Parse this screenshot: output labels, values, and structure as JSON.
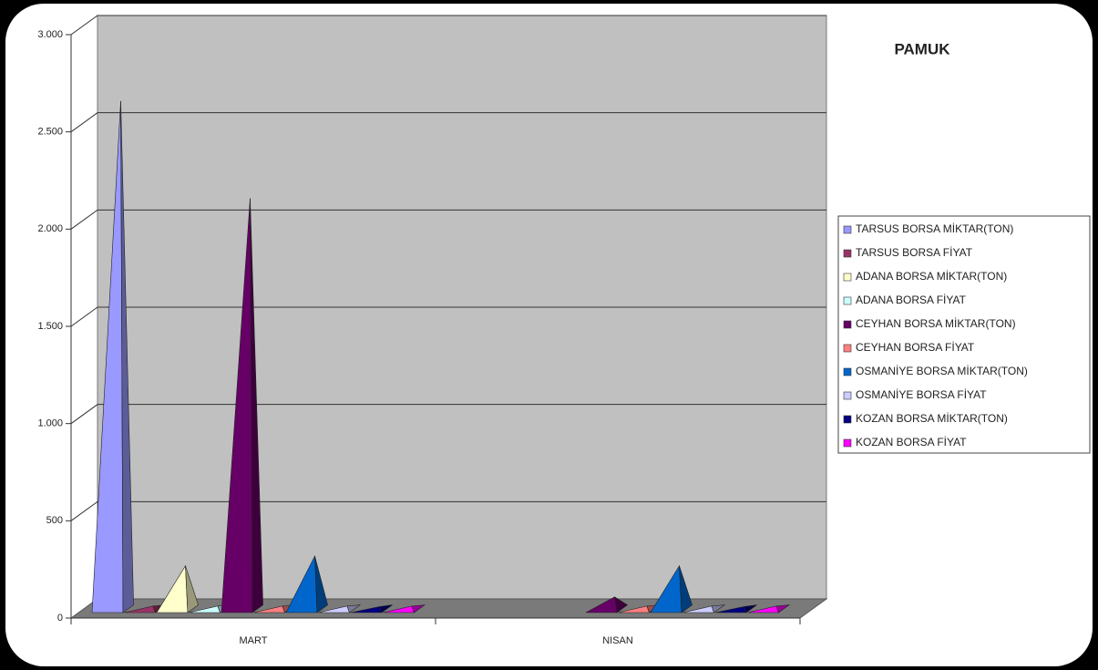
{
  "chart_data": {
    "type": "pyramid3d",
    "title": "PAMUK",
    "categories": [
      "MART",
      "NISAN"
    ],
    "series": [
      {
        "name": "TARSUS BORSA MİKTAR(TON)",
        "color": "#9999ff",
        "values": [
          2600,
          null
        ]
      },
      {
        "name": "TARSUS BORSA FİYAT",
        "color": "#993366",
        "values": [
          3,
          null
        ]
      },
      {
        "name": "ADANA BORSA MİKTAR(TON)",
        "color": "#ffffcc",
        "values": [
          210,
          null
        ]
      },
      {
        "name": "ADANA BORSA FİYAT",
        "color": "#ccffff",
        "values": [
          3,
          null
        ]
      },
      {
        "name": "CEYHAN BORSA MİKTAR(TON)",
        "color": "#660066",
        "values": [
          2100,
          50
        ]
      },
      {
        "name": "CEYHAN BORSA FİYAT",
        "color": "#ff8080",
        "values": [
          3,
          3
        ]
      },
      {
        "name": "OSMANİYE BORSA MİKTAR(TON)",
        "color": "#0066cc",
        "values": [
          260,
          210
        ]
      },
      {
        "name": "OSMANİYE BORSA FİYAT",
        "color": "#ccccff",
        "values": [
          3,
          3
        ]
      },
      {
        "name": "KOZAN BORSA MİKTAR(TON)",
        "color": "#000080",
        "values": [
          0,
          0
        ]
      },
      {
        "name": "KOZAN BORSA FİYAT",
        "color": "#ff00ff",
        "values": [
          3,
          3
        ]
      }
    ],
    "ylim": [
      0,
      3000
    ],
    "yticks": [
      0,
      500,
      {
        "value": 1000,
        "label": "1.000"
      },
      {
        "value": 1500,
        "label": "1.500"
      },
      {
        "value": 2000,
        "label": "2.000"
      },
      {
        "value": 2500,
        "label": "2.500"
      },
      {
        "value": 3000,
        "label": "3.000"
      }
    ],
    "grid": true
  }
}
